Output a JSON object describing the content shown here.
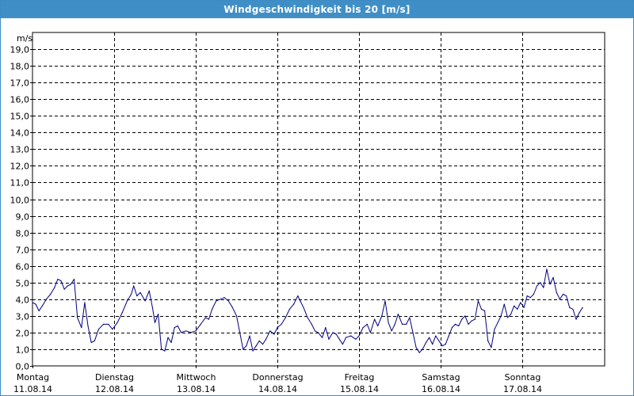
{
  "window": {
    "title": "Windgeschwindigkeit bis 20 [m/s]"
  },
  "colors": {
    "titlebar": "#3f8fc6",
    "series": "#000080",
    "grid": "#000000"
  },
  "chart_data": {
    "type": "line",
    "title": "Windgeschwindigkeit bis 20 [m/s]",
    "ylabel": "m/s",
    "xlabel": "",
    "ylim": [
      0,
      20
    ],
    "xlim": [
      0,
      7
    ],
    "grid": true,
    "y_ticks": [
      "0,0",
      "1,0",
      "2,0",
      "3,0",
      "4,0",
      "5,0",
      "6,0",
      "7,0",
      "8,0",
      "9,0",
      "10,0",
      "11,0",
      "12,0",
      "13,0",
      "14,0",
      "15,0",
      "16,0",
      "17,0",
      "18,0",
      "19,0"
    ],
    "x_ticks": [
      {
        "day": "Montag",
        "date": "11.08.14"
      },
      {
        "day": "Dienstag",
        "date": "12.08.14"
      },
      {
        "day": "Mittwoch",
        "date": "13.08.14"
      },
      {
        "day": "Donnerstag",
        "date": "14.08.14"
      },
      {
        "day": "Freitag",
        "date": "15.08.14"
      },
      {
        "day": "Samstag",
        "date": "16.08.14"
      },
      {
        "day": "Sonntag",
        "date": "17.08.14"
      }
    ],
    "series": [
      {
        "values": [
          [
            0.0,
            3.8
          ],
          [
            0.04,
            3.7
          ],
          [
            0.08,
            3.3
          ],
          [
            0.12,
            3.6
          ],
          [
            0.17,
            4.0
          ],
          [
            0.22,
            4.3
          ],
          [
            0.27,
            4.7
          ],
          [
            0.31,
            5.2
          ],
          [
            0.35,
            5.1
          ],
          [
            0.39,
            4.6
          ],
          [
            0.43,
            4.8
          ],
          [
            0.47,
            4.9
          ],
          [
            0.51,
            5.2
          ],
          [
            0.55,
            2.9
          ],
          [
            0.6,
            2.3
          ],
          [
            0.64,
            3.8
          ],
          [
            0.68,
            2.4
          ],
          [
            0.72,
            1.4
          ],
          [
            0.76,
            1.5
          ],
          [
            0.81,
            2.2
          ],
          [
            0.87,
            2.5
          ],
          [
            0.93,
            2.5
          ],
          [
            0.98,
            2.2
          ],
          [
            1.04,
            2.6
          ],
          [
            1.1,
            3.2
          ],
          [
            1.16,
            3.9
          ],
          [
            1.21,
            4.3
          ],
          [
            1.24,
            4.8
          ],
          [
            1.28,
            4.2
          ],
          [
            1.32,
            4.4
          ],
          [
            1.38,
            3.9
          ],
          [
            1.43,
            4.5
          ],
          [
            1.47,
            3.5
          ],
          [
            1.5,
            2.6
          ],
          [
            1.54,
            3.1
          ],
          [
            1.58,
            1.0
          ],
          [
            1.62,
            0.9
          ],
          [
            1.66,
            1.7
          ],
          [
            1.7,
            1.4
          ],
          [
            1.74,
            2.3
          ],
          [
            1.78,
            2.4
          ],
          [
            1.82,
            2.0
          ],
          [
            1.88,
            2.1
          ],
          [
            1.94,
            2.0
          ],
          [
            2.0,
            2.1
          ],
          [
            2.06,
            2.5
          ],
          [
            2.12,
            2.9
          ],
          [
            2.16,
            2.8
          ],
          [
            2.2,
            3.4
          ],
          [
            2.25,
            3.9
          ],
          [
            2.3,
            4.0
          ],
          [
            2.35,
            4.1
          ],
          [
            2.4,
            3.9
          ],
          [
            2.45,
            3.5
          ],
          [
            2.5,
            3.0
          ],
          [
            2.54,
            2.0
          ],
          [
            2.58,
            1.0
          ],
          [
            2.62,
            1.2
          ],
          [
            2.66,
            1.8
          ],
          [
            2.7,
            0.9
          ],
          [
            2.74,
            1.2
          ],
          [
            2.78,
            1.5
          ],
          [
            2.82,
            1.3
          ],
          [
            2.86,
            1.6
          ],
          [
            2.91,
            2.1
          ],
          [
            2.96,
            1.9
          ],
          [
            3.0,
            2.3
          ],
          [
            3.05,
            2.5
          ],
          [
            3.1,
            2.9
          ],
          [
            3.15,
            3.4
          ],
          [
            3.2,
            3.7
          ],
          [
            3.25,
            4.2
          ],
          [
            3.28,
            3.9
          ],
          [
            3.32,
            3.5
          ],
          [
            3.37,
            2.9
          ],
          [
            3.42,
            2.5
          ],
          [
            3.46,
            2.1
          ],
          [
            3.5,
            2.0
          ],
          [
            3.55,
            1.7
          ],
          [
            3.59,
            2.3
          ],
          [
            3.63,
            1.6
          ],
          [
            3.68,
            2.0
          ],
          [
            3.72,
            1.9
          ],
          [
            3.76,
            1.6
          ],
          [
            3.8,
            1.3
          ],
          [
            3.84,
            1.7
          ],
          [
            3.9,
            1.8
          ],
          [
            3.96,
            1.6
          ],
          [
            4.0,
            1.8
          ],
          [
            4.05,
            2.3
          ],
          [
            4.1,
            2.5
          ],
          [
            4.14,
            2.0
          ],
          [
            4.19,
            2.8
          ],
          [
            4.23,
            2.4
          ],
          [
            4.28,
            3.0
          ],
          [
            4.32,
            3.9
          ],
          [
            4.36,
            2.6
          ],
          [
            4.4,
            2.1
          ],
          [
            4.44,
            2.5
          ],
          [
            4.48,
            3.1
          ],
          [
            4.53,
            2.5
          ],
          [
            4.58,
            2.5
          ],
          [
            4.62,
            2.9
          ],
          [
            4.66,
            2.0
          ],
          [
            4.7,
            1.1
          ],
          [
            4.74,
            0.8
          ],
          [
            4.78,
            1.0
          ],
          [
            4.82,
            1.4
          ],
          [
            4.86,
            1.7
          ],
          [
            4.9,
            1.3
          ],
          [
            4.94,
            1.8
          ],
          [
            4.98,
            1.5
          ],
          [
            5.02,
            1.2
          ],
          [
            5.06,
            1.3
          ],
          [
            5.1,
            1.8
          ],
          [
            5.14,
            2.3
          ],
          [
            5.18,
            2.5
          ],
          [
            5.22,
            2.4
          ],
          [
            5.26,
            2.8
          ],
          [
            5.3,
            3.0
          ],
          [
            5.34,
            2.5
          ],
          [
            5.38,
            2.7
          ],
          [
            5.42,
            2.8
          ],
          [
            5.46,
            3.9
          ],
          [
            5.5,
            3.4
          ],
          [
            5.54,
            3.3
          ],
          [
            5.58,
            1.5
          ],
          [
            5.62,
            1.1
          ],
          [
            5.66,
            2.2
          ],
          [
            5.7,
            2.6
          ],
          [
            5.74,
            3.0
          ],
          [
            5.78,
            3.7
          ],
          [
            5.82,
            2.9
          ],
          [
            5.86,
            3.1
          ],
          [
            5.9,
            3.6
          ],
          [
            5.94,
            3.4
          ],
          [
            5.98,
            3.8
          ],
          [
            6.02,
            3.5
          ],
          [
            6.06,
            4.2
          ],
          [
            6.1,
            4.1
          ],
          [
            6.14,
            4.3
          ],
          [
            6.18,
            4.8
          ],
          [
            6.22,
            5.0
          ],
          [
            6.26,
            4.7
          ],
          [
            6.3,
            5.8
          ],
          [
            6.34,
            4.9
          ],
          [
            6.38,
            5.3
          ],
          [
            6.42,
            4.4
          ],
          [
            6.46,
            4.0
          ],
          [
            6.5,
            4.3
          ],
          [
            6.54,
            4.2
          ],
          [
            6.58,
            3.5
          ],
          [
            6.62,
            3.4
          ],
          [
            6.66,
            2.8
          ],
          [
            6.7,
            3.2
          ],
          [
            6.74,
            3.5
          ]
        ]
      }
    ]
  }
}
